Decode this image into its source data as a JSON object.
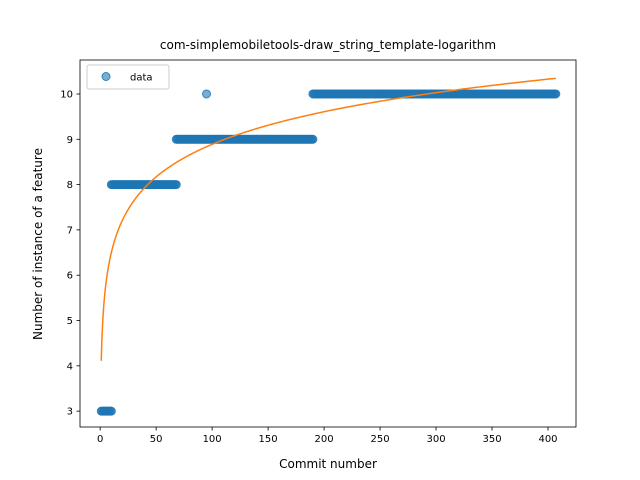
{
  "chart_data": {
    "type": "scatter",
    "title": "com-simplemobiletools-draw_string_template-logarithm",
    "xlabel": "Commit number",
    "ylabel": "Number of instance of a feature",
    "xlim": [
      -18,
      425
    ],
    "ylim": [
      2.65,
      10.75
    ],
    "xticks": [
      0,
      50,
      100,
      150,
      200,
      250,
      300,
      350,
      400
    ],
    "yticks": [
      3,
      4,
      5,
      6,
      7,
      8,
      9,
      10
    ],
    "grid": false,
    "legend": {
      "position": "top-left",
      "entries": [
        "data"
      ]
    },
    "colors": {
      "data": "#1f77b4",
      "fit": "#ff7f0e"
    },
    "series": [
      {
        "name": "data",
        "kind": "points",
        "segments": [
          {
            "x_start": 1,
            "x_end": 10,
            "y": 3
          },
          {
            "x_start": 10,
            "x_end": 68,
            "y": 8
          },
          {
            "x_start": 68,
            "x_end": 190,
            "y": 9
          },
          {
            "x_start": 190,
            "x_end": 407,
            "y": 10
          }
        ],
        "outliers": [
          {
            "x": 95,
            "y": 10
          }
        ]
      },
      {
        "kind": "line",
        "function": "logarithmic",
        "points": [
          [
            1,
            3.75
          ],
          [
            2,
            4.7
          ],
          [
            5,
            5.95
          ],
          [
            10,
            6.88
          ],
          [
            20,
            7.55
          ],
          [
            50,
            8.27
          ],
          [
            100,
            8.75
          ],
          [
            150,
            9.12
          ],
          [
            200,
            9.5
          ],
          [
            250,
            9.78
          ],
          [
            300,
            10.0
          ],
          [
            350,
            10.2
          ],
          [
            407,
            10.37
          ]
        ]
      }
    ]
  }
}
